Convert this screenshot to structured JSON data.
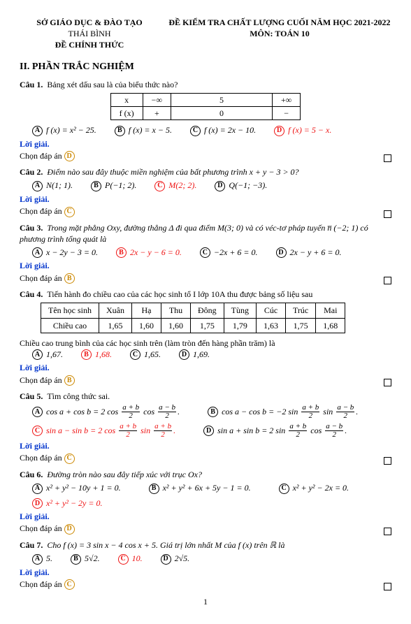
{
  "header": {
    "left1": "SỞ GIÁO DỤC & ĐÀO TẠO",
    "left2": "THÁI BÌNH",
    "left3": "ĐỀ CHÍNH THỨC",
    "right1": "ĐỀ KIỂM TRA CHẤT LƯỢNG CUỐI NĂM HỌC 2021-2022",
    "right2": "MÔN: TOÁN 10"
  },
  "section_title": "II. PHẦN TRẮC NGHIỆM",
  "labels": {
    "loi": "Lời giải.",
    "chon": "Chọn đáp án",
    "cau": "Câu"
  },
  "pagenum": "1",
  "signtable": {
    "row1": [
      "x",
      "−∞",
      "5",
      "+∞"
    ],
    "row2": [
      "f (x)",
      "+",
      "0",
      "−"
    ]
  },
  "datatable": {
    "headers": [
      "Tên học sinh",
      "Xuân",
      "Hạ",
      "Thu",
      "Đông",
      "Tùng",
      "Cúc",
      "Trúc",
      "Mai"
    ],
    "row": [
      "Chiều cao",
      "1,65",
      "1,60",
      "1,60",
      "1,75",
      "1,79",
      "1,63",
      "1,75",
      "1,68"
    ]
  },
  "q1": {
    "num": "1",
    "text": "Bảng xét dấu sau là của biểu thức nào?",
    "A": "f (x) = x² − 25.",
    "B": "f (x) = x − 5.",
    "C": "f (x) = 2x − 10.",
    "D": "f (x) = 5 − x.",
    "correct": "D",
    "chosen": "D"
  },
  "q2": {
    "num": "2",
    "text": "Điểm nào sau đây thuộc miền nghiệm của bất phương trình x + y − 3 > 0?",
    "A": "N(1; 1).",
    "B": "P(−1; 2).",
    "C": "M(2; 2).",
    "D": "Q(−1; −3).",
    "correct": "C",
    "chosen": "C"
  },
  "q3": {
    "num": "3",
    "text": "Trong mặt phẳng Oxy, đường thẳng Δ đi qua điểm M(3; 0) và có véc-tơ pháp tuyến n̅ (−2; 1) có phương trình tổng quát là",
    "A": "x − 2y − 3 = 0.",
    "B": "2x − y − 6 = 0.",
    "C": "−2x + 6 = 0.",
    "D": "2x − y + 6 = 0.",
    "correct": "B",
    "chosen": "B"
  },
  "q4": {
    "num": "4",
    "text": "Tiến hành đo chiều cao của các học sinh tổ I lớp 10A thu được bảng số liệu sau",
    "after": "Chiều cao trung bình của các học sinh trên (làm tròn đến hàng phần trăm) là",
    "A": "1,67.",
    "B": "1,68.",
    "C": "1,65.",
    "D": "1,69.",
    "correct": "B",
    "chosen": "B"
  },
  "q5": {
    "num": "5",
    "text": "Tìm công thức sai.",
    "A": {
      "pre": "cos a + cos b = 2 cos",
      "n1": "a + b",
      "d1": "2",
      "mid": "cos",
      "n2": "a − b",
      "d2": "2",
      "post": "."
    },
    "B": {
      "pre": "cos a − cos b = −2 sin",
      "n1": "a + b",
      "d1": "2",
      "mid": "sin",
      "n2": "a − b",
      "d2": "2",
      "post": "."
    },
    "C": {
      "pre": "sin a − sin b = 2 cos",
      "n1": "a + b",
      "d1": "2",
      "mid": "sin",
      "n2": "a + b",
      "d2": "2",
      "post": "."
    },
    "D": {
      "pre": "sin a + sin b = 2 sin",
      "n1": "a + b",
      "d1": "2",
      "mid": "cos",
      "n2": "a − b",
      "d2": "2",
      "post": "."
    },
    "correct": "C",
    "chosen": "C"
  },
  "q6": {
    "num": "6",
    "text": "Đường tròn nào sau đây tiếp xúc với trục Ox?",
    "A": "x² + y² − 10y + 1 = 0.",
    "B": "x² + y² + 6x + 5y − 1 = 0.",
    "C": "x² + y² − 2x = 0.",
    "D": "x² + y² − 2y = 0.",
    "correct": "D",
    "chosen": "D"
  },
  "q7": {
    "num": "7",
    "text": "Cho f (x) = 3 sin x − 4 cos x + 5. Giá trị lớn nhất M của f (x) trên ℝ là",
    "A": "5.",
    "B": "5√2.",
    "C": "10.",
    "D": "2√5.",
    "correct": "C",
    "chosen": "C"
  }
}
